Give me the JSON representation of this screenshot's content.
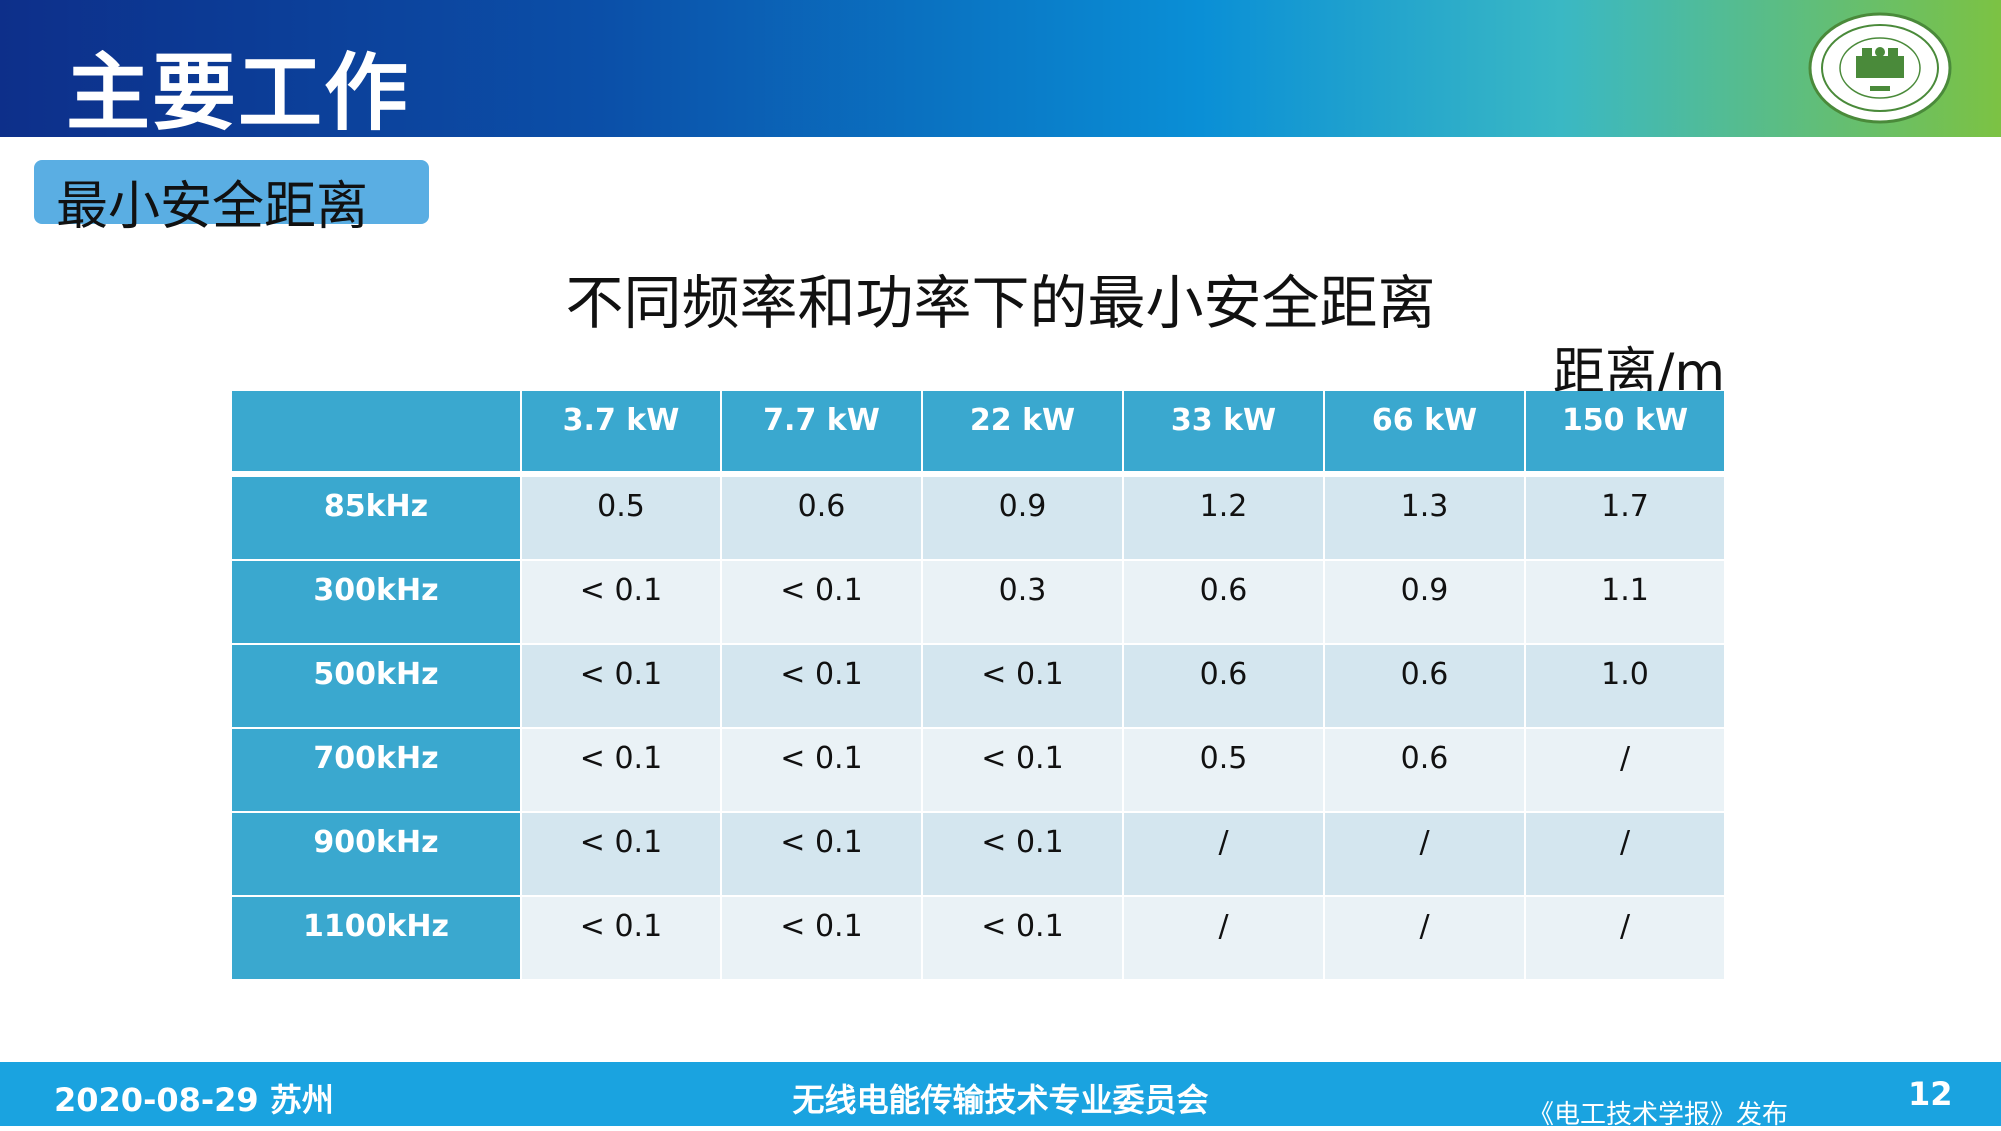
{
  "header": {
    "title": "主要工作"
  },
  "section": {
    "tag": "最小安全距离"
  },
  "table": {
    "title": "不同频率和功率下的最小安全距离",
    "unit": "距离/m",
    "columns": [
      "",
      "3.7 kW",
      "7.7 kW",
      "22 kW",
      "33 kW",
      "66 kW",
      "150 kW"
    ],
    "rows": [
      {
        "label": "85kHz",
        "values": [
          "0.5",
          "0.6",
          "0.9",
          "1.2",
          "1.3",
          "1.7"
        ]
      },
      {
        "label": "300kHz",
        "values": [
          "< 0.1",
          "< 0.1",
          "0.3",
          "0.6",
          "0.9",
          "1.1"
        ]
      },
      {
        "label": "500kHz",
        "values": [
          "< 0.1",
          "< 0.1",
          "< 0.1",
          "0.6",
          "0.6",
          "1.0"
        ]
      },
      {
        "label": "700kHz",
        "values": [
          "< 0.1",
          "< 0.1",
          "< 0.1",
          "0.5",
          "0.6",
          "/"
        ]
      },
      {
        "label": "900kHz",
        "values": [
          "< 0.1",
          "< 0.1",
          "< 0.1",
          "/",
          "/",
          "/"
        ]
      },
      {
        "label": "1100kHz",
        "values": [
          "< 0.1",
          "< 0.1",
          "< 0.1",
          "/",
          "/",
          "/"
        ]
      }
    ]
  },
  "footer": {
    "date": "2020-08-29 苏州",
    "center": "无线电能传输技术专业委员会",
    "publisher": "《电工技术学报》发布",
    "page": "12"
  },
  "colors": {
    "header_start": "#0d2f8a",
    "header_end": "#7cc243",
    "table_header": "#3aa8cf",
    "row_odd": "#d4e6ef",
    "row_even": "#eaf2f6",
    "footer": "#1aa3e0"
  },
  "icons": {
    "logo": "university-seal-icon"
  }
}
